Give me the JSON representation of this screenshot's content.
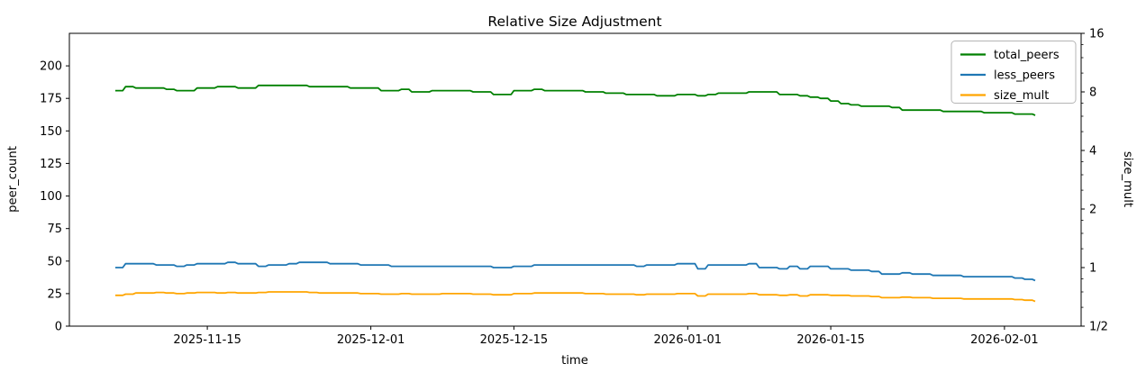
{
  "chart_data": {
    "type": "line",
    "title": "Relative Size Adjustment",
    "x_axis": {
      "label": "time",
      "start_date": "2025-11-06",
      "lim_days": [
        -4.5,
        94.5
      ],
      "ticks": [
        {
          "day": 9,
          "label": "2025-11-15"
        },
        {
          "day": 25,
          "label": "2025-12-01"
        },
        {
          "day": 39,
          "label": "2025-12-15"
        },
        {
          "day": 56,
          "label": "2026-01-01"
        },
        {
          "day": 70,
          "label": "2026-01-15"
        },
        {
          "day": 87,
          "label": "2026-02-01"
        }
      ]
    },
    "left_axis": {
      "label": "peer_count",
      "scale": "linear",
      "lim": [
        0,
        225
      ],
      "ticks": [
        0,
        25,
        50,
        75,
        100,
        125,
        150,
        175,
        200
      ]
    },
    "right_axis": {
      "label": "size_mult",
      "scale": "log2",
      "lim": [
        0.5,
        16
      ],
      "major_ticks": [
        {
          "v": 16,
          "label": "16"
        },
        {
          "v": 8,
          "label": "8"
        },
        {
          "v": 4,
          "label": "4"
        },
        {
          "v": 2,
          "label": "2"
        },
        {
          "v": 1,
          "label": "1"
        },
        {
          "v": 0.5,
          "label": "1/2"
        }
      ],
      "minor_octave_bases": [
        0.5,
        1,
        2,
        4,
        8
      ],
      "minor_ratios": [
        1.25,
        1.5,
        1.75
      ]
    },
    "legend": {
      "position": "upper right"
    },
    "grid": false,
    "series": [
      {
        "name": "total_peers",
        "color": "#008000",
        "axis": "left",
        "values": [
          181,
          184,
          183,
          183,
          183,
          182,
          181,
          181,
          183,
          183,
          184,
          184,
          183,
          183,
          185,
          185,
          185,
          185,
          185,
          184,
          184,
          184,
          184,
          183,
          183,
          183,
          181,
          181,
          182,
          180,
          180,
          181,
          181,
          181,
          181,
          180,
          180,
          178,
          178,
          181,
          181,
          182,
          181,
          181,
          181,
          181,
          180,
          180,
          179,
          179,
          178,
          178,
          178,
          177,
          177,
          178,
          178,
          177,
          178,
          179,
          179,
          179,
          180,
          180,
          180,
          178,
          178,
          177,
          176,
          175,
          173,
          171,
          170,
          169,
          169,
          169,
          168,
          166,
          166,
          166,
          166,
          165,
          165,
          165,
          165,
          164,
          164,
          164,
          163,
          163,
          162
        ]
      },
      {
        "name": "less_peers",
        "color": "#1f77b4",
        "axis": "left",
        "values": [
          45,
          48,
          48,
          48,
          47,
          47,
          46,
          47,
          48,
          48,
          48,
          49,
          48,
          48,
          46,
          47,
          47,
          48,
          49,
          49,
          49,
          48,
          48,
          48,
          47,
          47,
          47,
          46,
          46,
          46,
          46,
          46,
          46,
          46,
          46,
          46,
          46,
          45,
          45,
          46,
          46,
          47,
          47,
          47,
          47,
          47,
          47,
          47,
          47,
          47,
          47,
          46,
          47,
          47,
          47,
          48,
          48,
          44,
          47,
          47,
          47,
          47,
          48,
          45,
          45,
          44,
          46,
          44,
          46,
          46,
          44,
          44,
          43,
          43,
          42,
          40,
          40,
          41,
          40,
          40,
          39,
          39,
          39,
          38,
          38,
          38,
          38,
          38,
          37,
          36,
          35
        ]
      },
      {
        "name": "size_mult",
        "color": "#ffa500",
        "axis": "right",
        "values": [
          0.72,
          0.73,
          0.74,
          0.74,
          0.745,
          0.74,
          0.735,
          0.74,
          0.745,
          0.745,
          0.74,
          0.745,
          0.74,
          0.74,
          0.745,
          0.75,
          0.75,
          0.75,
          0.75,
          0.745,
          0.74,
          0.74,
          0.74,
          0.74,
          0.735,
          0.735,
          0.73,
          0.73,
          0.735,
          0.73,
          0.73,
          0.73,
          0.735,
          0.735,
          0.735,
          0.73,
          0.73,
          0.725,
          0.725,
          0.735,
          0.735,
          0.74,
          0.74,
          0.74,
          0.74,
          0.74,
          0.735,
          0.735,
          0.73,
          0.73,
          0.73,
          0.725,
          0.73,
          0.73,
          0.73,
          0.735,
          0.735,
          0.715,
          0.73,
          0.73,
          0.73,
          0.73,
          0.735,
          0.725,
          0.725,
          0.72,
          0.725,
          0.715,
          0.725,
          0.725,
          0.72,
          0.72,
          0.715,
          0.715,
          0.71,
          0.7,
          0.7,
          0.705,
          0.7,
          0.7,
          0.695,
          0.695,
          0.695,
          0.69,
          0.69,
          0.69,
          0.69,
          0.69,
          0.685,
          0.68,
          0.67
        ]
      }
    ]
  }
}
